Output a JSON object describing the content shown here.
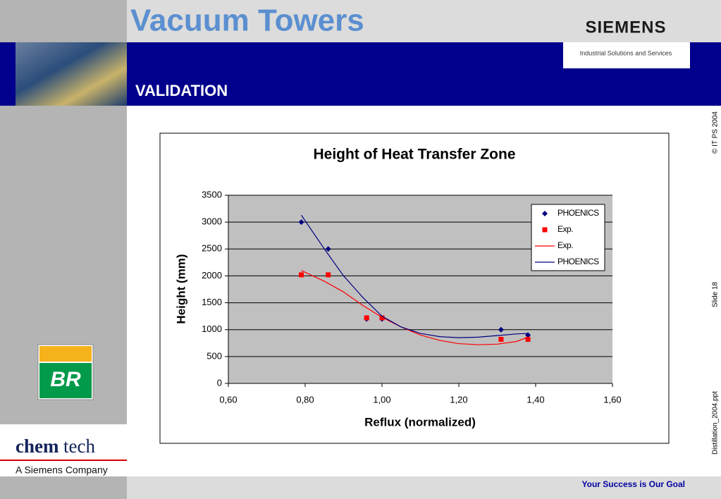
{
  "header": {
    "title": "Vacuum Towers",
    "section": "VALIDATION",
    "brand": "SIEMENS",
    "brand_sub": "Industrial Solutions and Services"
  },
  "side": {
    "copyright": "© IT PS 2004",
    "slide": "Slide 18",
    "file": "Distillation_2004.ppt"
  },
  "logos": {
    "br": "BR",
    "chem": "chem",
    "tech": "tech",
    "company": "A Siemens Company"
  },
  "footer": {
    "slogan": "Your Success is Our Goal"
  },
  "chart_data": {
    "type": "scatter",
    "title": "Height of Heat Transfer Zone",
    "x_label": "Reflux (normalized)",
    "y_label": "Height (mm)",
    "xlim": [
      0.6,
      1.6
    ],
    "xticks": [
      {
        "value": 0.6,
        "label": "0,60"
      },
      {
        "value": 0.8,
        "label": "0,80"
      },
      {
        "value": 1.0,
        "label": "1,00"
      },
      {
        "value": 1.2,
        "label": "1,20"
      },
      {
        "value": 1.4,
        "label": "1,40"
      },
      {
        "value": 1.6,
        "label": "1,60"
      }
    ],
    "ylim": [
      0,
      3500
    ],
    "yticks": [
      0,
      500,
      1000,
      1500,
      2000,
      2500,
      3000,
      3500
    ],
    "grid": true,
    "legend": "upper right",
    "series": [
      {
        "name": "PHOENICS",
        "kind": "scatter",
        "marker": "diamond",
        "color": "#000080",
        "x": [
          0.79,
          0.86,
          0.96,
          1.0,
          1.31,
          1.38
        ],
        "values": [
          3000,
          2500,
          1200,
          1200,
          1000,
          900
        ]
      },
      {
        "name": "Exp.",
        "kind": "scatter",
        "marker": "square",
        "color": "#ff0000",
        "x": [
          0.79,
          0.86,
          0.96,
          1.0,
          1.31,
          1.38
        ],
        "values": [
          2020,
          2020,
          1220,
          1220,
          820,
          820
        ]
      },
      {
        "name": "Exp.",
        "kind": "line",
        "color": "#ff0000",
        "x": [
          0.79,
          0.85,
          0.9,
          0.95,
          1.0,
          1.05,
          1.1,
          1.15,
          1.2,
          1.25,
          1.3,
          1.35,
          1.38
        ],
        "values": [
          2100,
          1900,
          1700,
          1450,
          1230,
          1050,
          900,
          800,
          740,
          720,
          730,
          780,
          860
        ]
      },
      {
        "name": "PHOENICS",
        "kind": "line",
        "color": "#000080",
        "x": [
          0.79,
          0.85,
          0.9,
          0.95,
          1.0,
          1.05,
          1.1,
          1.15,
          1.2,
          1.25,
          1.3,
          1.35,
          1.38
        ],
        "values": [
          3130,
          2500,
          2000,
          1600,
          1250,
          1050,
          930,
          870,
          850,
          860,
          890,
          920,
          930
        ]
      }
    ]
  }
}
